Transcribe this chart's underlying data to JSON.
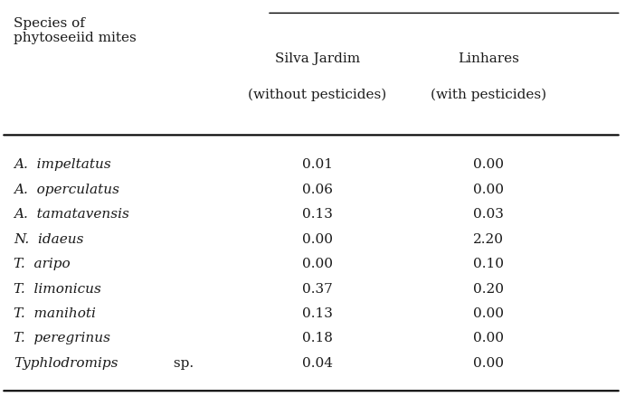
{
  "col_header_line1": [
    "Silva Jardim",
    "Linhares"
  ],
  "col_header_line2": [
    "(without pesticides)",
    "(with pesticides)"
  ],
  "row_header": "Species of\nphytoseeiid mites",
  "species": [
    "A.  impeltatus",
    "A.  operculatus",
    "A.  tamatavensis",
    "N.  idaeus",
    "T.  aripo",
    "T.  limonicus",
    "T.  manihoti",
    "T.  peregrinus",
    "Typhlodromips  sp."
  ],
  "silva_jardim": [
    "0.01",
    "0.06",
    "0.13",
    "0.00",
    "0.00",
    "0.37",
    "0.13",
    "0.18",
    "0.04"
  ],
  "linhares": [
    "0.00",
    "0.00",
    "0.03",
    "2.20",
    "0.10",
    "0.20",
    "0.00",
    "0.00",
    "0.00"
  ],
  "bg_color": "#ffffff",
  "text_color": "#1a1a1a",
  "font_size": 11,
  "header_font_size": 11
}
